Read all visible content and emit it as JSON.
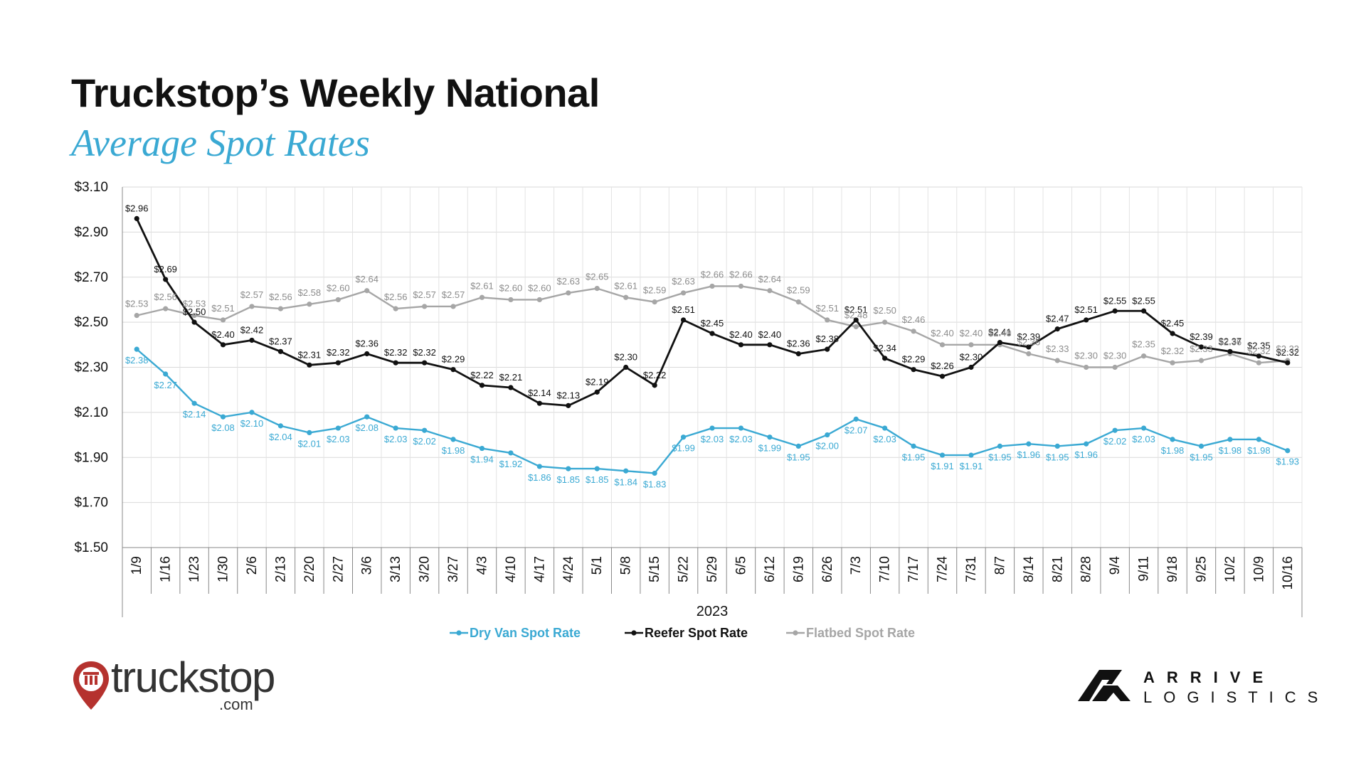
{
  "title": "Truckstop’s Weekly National",
  "subtitle": "Average Spot Rates",
  "logos": {
    "left_word": "truckstop",
    "left_sub": ".com",
    "right_line1": "ARRIVE",
    "right_line2": "LOGISTICS"
  },
  "colors": {
    "dry_van": "#3aa9d3",
    "reefer": "#111111",
    "flatbed": "#a6a6a6",
    "title_accent": "#3aa9d3",
    "truckstop_red": "#b5322e"
  },
  "chart_data": {
    "type": "line",
    "xlabel": "2023",
    "ylim": [
      1.5,
      3.1
    ],
    "yticks": [
      "$1.50",
      "$1.70",
      "$1.90",
      "$2.10",
      "$2.30",
      "$2.50",
      "$2.70",
      "$2.90",
      "$3.10"
    ],
    "ytick_values": [
      1.5,
      1.7,
      1.9,
      2.1,
      2.3,
      2.5,
      2.7,
      2.9,
      3.1
    ],
    "grid": true,
    "legend_position": "bottom",
    "categories": [
      "1/9",
      "1/16",
      "1/23",
      "1/30",
      "2/6",
      "2/13",
      "2/20",
      "2/27",
      "3/6",
      "3/13",
      "3/20",
      "3/27",
      "4/3",
      "4/10",
      "4/17",
      "4/24",
      "5/1",
      "5/8",
      "5/15",
      "5/22",
      "5/29",
      "6/5",
      "6/12",
      "6/19",
      "6/26",
      "7/3",
      "7/10",
      "7/17",
      "7/24",
      "7/31",
      "8/7",
      "8/14",
      "8/21",
      "8/28",
      "9/4",
      "9/11",
      "9/18",
      "9/25",
      "10/2",
      "10/9",
      "10/16"
    ],
    "series": [
      {
        "name": "Dry Van Spot Rate",
        "color": "#3aa9d3",
        "values": [
          2.38,
          2.27,
          2.14,
          2.08,
          2.1,
          2.04,
          2.01,
          2.03,
          2.08,
          2.03,
          2.02,
          1.98,
          1.94,
          1.92,
          1.86,
          1.85,
          1.85,
          1.84,
          1.83,
          1.99,
          2.03,
          2.03,
          1.99,
          1.95,
          2.0,
          2.07,
          2.03,
          1.95,
          1.91,
          1.91,
          1.95,
          1.96,
          1.95,
          1.96,
          2.02,
          2.03,
          1.98,
          1.95,
          1.98,
          1.98,
          1.93
        ],
        "labels": [
          "$2.38",
          "$2.27",
          "$2.14",
          "$2.08",
          "$2.10",
          "$2.04",
          "$2.01",
          "$2.03",
          "$2.08",
          "$2.03",
          "$2.02",
          "$1.98",
          "$1.94",
          "$1.92",
          "$1.86",
          "$1.85",
          "$1.85",
          "$1.84",
          "$1.83",
          "$1.99",
          "$2.03",
          "$2.03",
          "$1.99",
          "$1.95",
          "$2.00",
          "$2.07",
          "$2.03",
          "$1.95",
          "$1.91",
          "$1.91",
          "$1.95",
          "$1.96",
          "$1.95",
          "$1.96",
          "$2.02",
          "$2.03",
          "$1.98",
          "$1.95",
          "$1.98",
          "$1.98",
          "$1.93"
        ]
      },
      {
        "name": "Reefer Spot Rate",
        "color": "#111111",
        "values": [
          2.96,
          2.69,
          2.5,
          2.4,
          2.42,
          2.37,
          2.31,
          2.32,
          2.36,
          2.32,
          2.32,
          2.29,
          2.22,
          2.21,
          2.14,
          2.13,
          2.19,
          2.3,
          2.22,
          2.51,
          2.45,
          2.4,
          2.4,
          2.36,
          2.38,
          2.51,
          2.34,
          2.29,
          2.26,
          2.3,
          2.41,
          2.39,
          2.47,
          2.51,
          2.55,
          2.55,
          2.45,
          2.39,
          2.37,
          2.35,
          2.32
        ],
        "labels": [
          "$2.96",
          "$2.69",
          "$2.50",
          "$2.40",
          "$2.42",
          "$2.37",
          "$2.31",
          "$2.32",
          "$2.36",
          "$2.32",
          "$2.32",
          "$2.29",
          "$2.22",
          "$2.21",
          "$2.14",
          "$2.13",
          "$2.19",
          "$2.30",
          "$2.22",
          "$2.51",
          "$2.45",
          "$2.40",
          "$2.40",
          "$2.36",
          "$2.38",
          "$2.51",
          "$2.34",
          "$2.29",
          "$2.26",
          "$2.30",
          "$2.41",
          "$2.39",
          "$2.47",
          "$2.51",
          "$2.55",
          "$2.55",
          "$2.45",
          "$2.39",
          "$2.37",
          "$2.35",
          "$2.32"
        ]
      },
      {
        "name": "Flatbed Spot Rate",
        "color": "#a6a6a6",
        "values": [
          2.53,
          2.56,
          2.53,
          2.51,
          2.57,
          2.56,
          2.58,
          2.6,
          2.64,
          2.56,
          2.57,
          2.57,
          2.61,
          2.6,
          2.6,
          2.63,
          2.65,
          2.61,
          2.59,
          2.63,
          2.66,
          2.66,
          2.64,
          2.59,
          2.51,
          2.48,
          2.5,
          2.46,
          2.4,
          2.4,
          2.4,
          2.36,
          2.33,
          2.3,
          2.3,
          2.35,
          2.32,
          2.33,
          2.36,
          2.32,
          2.33
        ],
        "labels": [
          "$2.53",
          "$2.56",
          "$2.53",
          "$2.51",
          "$2.57",
          "$2.56",
          "$2.58",
          "$2.60",
          "$2.64",
          "$2.56",
          "$2.57",
          "$2.57",
          "$2.61",
          "$2.60",
          "$2.60",
          "$2.63",
          "$2.65",
          "$2.61",
          "$2.59",
          "$2.63",
          "$2.66",
          "$2.66",
          "$2.64",
          "$2.59",
          "$2.51",
          "$2.48",
          "$2.50",
          "$2.46",
          "$2.40",
          "$2.40",
          "$2.40",
          "$2.36",
          "$2.33",
          "$2.30",
          "$2.30",
          "$2.35",
          "$2.32",
          "$2.33",
          "$2.36",
          "$2.32",
          "$2.33"
        ]
      }
    ]
  }
}
